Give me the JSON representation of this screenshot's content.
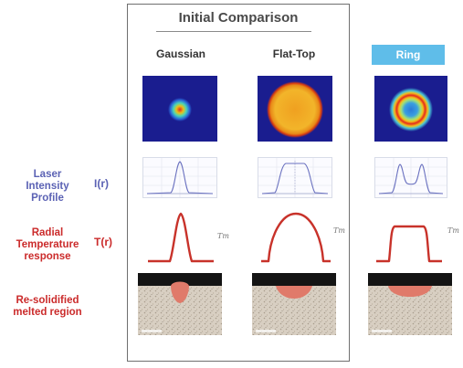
{
  "title": "Initial Comparison",
  "columns": [
    {
      "label": "Gaussian"
    },
    {
      "label": "Flat-Top"
    },
    {
      "label": "Ring"
    }
  ],
  "rows": {
    "intensity": {
      "label_lines": [
        "Laser",
        "Intensity",
        "Profile"
      ],
      "symbol": "I(r)"
    },
    "temperature": {
      "label_lines": [
        "Radial",
        "Temperature",
        "response"
      ],
      "symbol": "T(r)"
    },
    "melt": {
      "label_lines": [
        "Re-solidified",
        "melted region"
      ]
    }
  },
  "tm_label": "Tm",
  "colors": {
    "blue_label": "#5b62b4",
    "red_label": "#cb2b2b",
    "ring_badge": "#5fbde9",
    "beam_background": "#1a1d8f",
    "melt_pool": "#e07a6a",
    "temperature_curve": "#c8322a"
  }
}
